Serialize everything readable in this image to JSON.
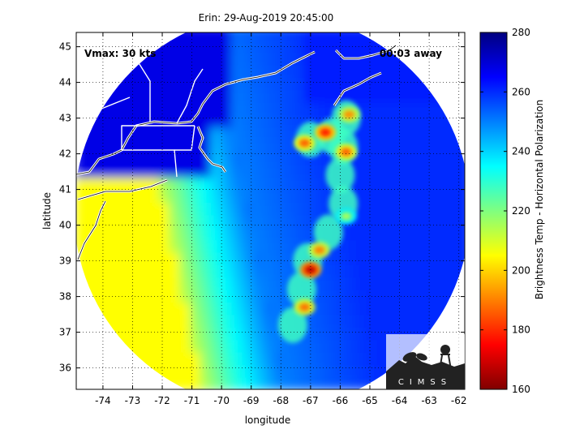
{
  "chart_data": {
    "type": "heatmap",
    "title": "Erin: 29-Aug-2019 20:45:00",
    "xlabel": "longitude",
    "ylabel": "latitude",
    "xlim": [
      -74.9,
      -61.8
    ],
    "ylim": [
      35.4,
      45.4
    ],
    "xticks": [
      "-74",
      "-73",
      "-72",
      "-71",
      "-70",
      "-69",
      "-68",
      "-67",
      "-66",
      "-65",
      "-64",
      "-63",
      "-62"
    ],
    "yticks": [
      "36",
      "37",
      "38",
      "39",
      "40",
      "41",
      "42",
      "43",
      "44",
      "45"
    ],
    "grid": true,
    "annotations": {
      "vmax": "Vmax: 30 kts",
      "time_away": "00:03 away"
    },
    "colorbar": {
      "label": "Brightness Temp - Horizontal Polarization",
      "min": 160,
      "max": 280,
      "ticks": [
        "160",
        "180",
        "200",
        "220",
        "240",
        "260",
        "280"
      ]
    },
    "swath": {
      "center_lon": -68.3,
      "center_lat": 40.4,
      "radius_deg": 5.55
    },
    "cold_cells": [
      {
        "lon": -67.0,
        "lat": 38.75,
        "value": 168
      },
      {
        "lon": -67.2,
        "lat": 37.7,
        "value": 188
      },
      {
        "lon": -66.7,
        "lat": 39.3,
        "value": 190
      },
      {
        "lon": -66.5,
        "lat": 42.6,
        "value": 178
      },
      {
        "lon": -67.2,
        "lat": 42.3,
        "value": 186
      },
      {
        "lon": -65.8,
        "lat": 42.05,
        "value": 186
      },
      {
        "lon": -65.7,
        "lat": 43.1,
        "value": 192
      },
      {
        "lon": -65.8,
        "lat": 40.25,
        "value": 215
      }
    ],
    "logo": "CIMSS"
  }
}
